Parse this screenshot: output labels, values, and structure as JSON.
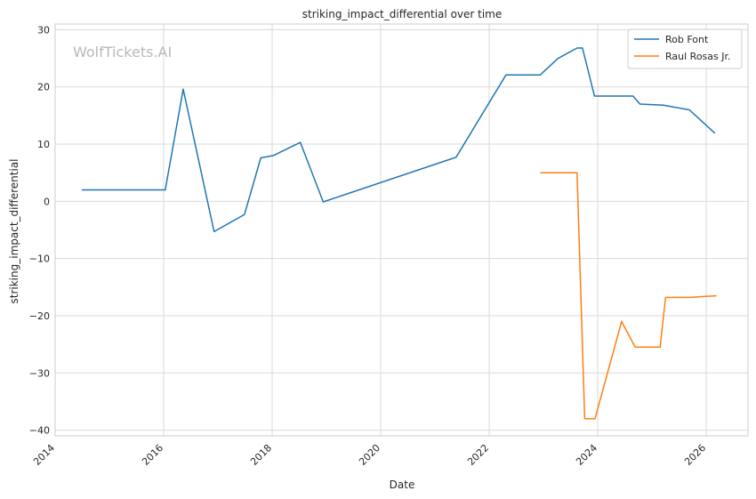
{
  "chart_data": {
    "type": "line",
    "title": "striking_impact_differential over time",
    "xlabel": "Date",
    "ylabel": "striking_impact_differential",
    "watermark": "WolfTickets.AI",
    "xlim": [
      2014.0,
      2026.77
    ],
    "ylim": [
      -41.0,
      31.0
    ],
    "x_ticks": [
      2014,
      2016,
      2018,
      2020,
      2022,
      2024,
      2026
    ],
    "x_tick_labels": [
      "2014",
      "2016",
      "2018",
      "2020",
      "2022",
      "2024",
      "2026"
    ],
    "y_ticks": [
      30,
      20,
      10,
      0,
      -10,
      -20,
      -30,
      -40
    ],
    "y_tick_labels": [
      "30",
      "20",
      "10",
      "0",
      "−10",
      "−20",
      "−30",
      "−40"
    ],
    "grid": true,
    "legend_position": "top-right",
    "series": [
      {
        "name": "Rob Font",
        "color": "#1f77b4",
        "points": [
          [
            2014.49,
            2.0
          ],
          [
            2016.03,
            2.0
          ],
          [
            2016.36,
            19.6
          ],
          [
            2016.93,
            -5.3
          ],
          [
            2017.49,
            -2.3
          ],
          [
            2017.79,
            7.6
          ],
          [
            2018.02,
            8.0
          ],
          [
            2018.52,
            10.3
          ],
          [
            2018.94,
            -0.1
          ],
          [
            2021.39,
            7.7
          ],
          [
            2022.31,
            22.1
          ],
          [
            2022.94,
            22.1
          ],
          [
            2023.27,
            25.0
          ],
          [
            2023.62,
            26.8
          ],
          [
            2023.72,
            26.8
          ],
          [
            2023.94,
            18.4
          ],
          [
            2024.65,
            18.4
          ],
          [
            2024.78,
            17.0
          ],
          [
            2025.21,
            16.8
          ],
          [
            2025.69,
            16.0
          ],
          [
            2026.16,
            11.9
          ]
        ]
      },
      {
        "name": "Raul Rosas Jr.",
        "color": "#ff7f0e",
        "points": [
          [
            2022.94,
            5.0
          ],
          [
            2023.62,
            5.0
          ],
          [
            2023.76,
            -38.0
          ],
          [
            2023.95,
            -38.0
          ],
          [
            2024.44,
            -21.0
          ],
          [
            2024.69,
            -25.5
          ],
          [
            2025.15,
            -25.5
          ],
          [
            2025.25,
            -16.8
          ],
          [
            2025.69,
            -16.8
          ],
          [
            2026.19,
            -16.5
          ]
        ]
      }
    ]
  }
}
